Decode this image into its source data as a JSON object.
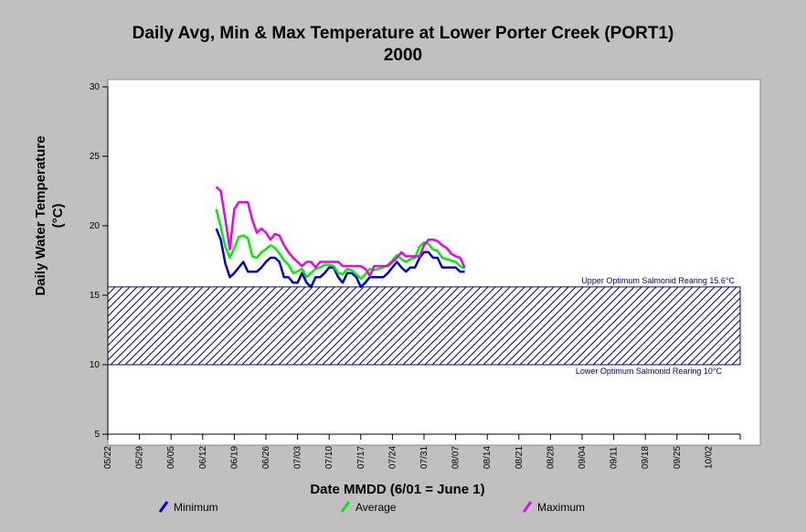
{
  "chart_data": {
    "type": "line",
    "title": "Daily Avg, Min & Max Temperature at Lower Porter Creek (PORT1)",
    "subtitle": "2000",
    "xlabel": "Date MMDD (6/01 = June 1)",
    "ylabel_line1": "Daily Water Temperature",
    "ylabel_line2": "(°C)",
    "ylim": [
      5,
      30
    ],
    "yticks": [
      5,
      10,
      15,
      20,
      25,
      30
    ],
    "xlim": [
      "2000-05-22",
      "2000-10-09"
    ],
    "xticks": [
      "05/22",
      "05/29",
      "06/05",
      "06/12",
      "06/19",
      "06/26",
      "07/03",
      "07/10",
      "07/17",
      "07/24",
      "07/31",
      "08/07",
      "08/14",
      "08/21",
      "08/28",
      "09/04",
      "09/11",
      "09/18",
      "09/25",
      "10/02"
    ],
    "grid": false,
    "legend_position": "bottom",
    "x": [
      "2000-06-15",
      "2000-06-16",
      "2000-06-17",
      "2000-06-18",
      "2000-06-19",
      "2000-06-20",
      "2000-06-21",
      "2000-06-22",
      "2000-06-23",
      "2000-06-24",
      "2000-06-25",
      "2000-06-26",
      "2000-06-27",
      "2000-06-28",
      "2000-06-29",
      "2000-06-30",
      "2000-07-01",
      "2000-07-02",
      "2000-07-03",
      "2000-07-04",
      "2000-07-05",
      "2000-07-06",
      "2000-07-07",
      "2000-07-08",
      "2000-07-09",
      "2000-07-10",
      "2000-07-11",
      "2000-07-12",
      "2000-07-13",
      "2000-07-14",
      "2000-07-15",
      "2000-07-16",
      "2000-07-17",
      "2000-07-18",
      "2000-07-19",
      "2000-07-20",
      "2000-07-21",
      "2000-07-22",
      "2000-07-23",
      "2000-07-24",
      "2000-07-25",
      "2000-07-26",
      "2000-07-27",
      "2000-07-28",
      "2000-07-29",
      "2000-07-30",
      "2000-07-31",
      "2000-08-01",
      "2000-08-02",
      "2000-08-03",
      "2000-08-04",
      "2000-08-05",
      "2000-08-06",
      "2000-08-07",
      "2000-08-08",
      "2000-08-09"
    ],
    "series": [
      {
        "name": "Minimum",
        "color": "#0000cc",
        "values": [
          19.8,
          19.0,
          17.3,
          16.3,
          16.6,
          17.0,
          17.4,
          16.7,
          16.7,
          16.7,
          17.0,
          17.4,
          17.7,
          17.7,
          17.4,
          16.3,
          16.3,
          15.9,
          15.9,
          16.6,
          15.9,
          15.6,
          16.3,
          16.3,
          16.6,
          17.0,
          17.0,
          16.3,
          15.9,
          16.6,
          16.6,
          16.3,
          15.6,
          15.9,
          16.3,
          16.3,
          16.3,
          16.3,
          16.6,
          17.0,
          17.4,
          17.0,
          16.7,
          17.0,
          17.0,
          17.7,
          18.1,
          18.1,
          17.7,
          17.7,
          17.0,
          17.0,
          17.0,
          17.0,
          16.7,
          16.7
        ]
      },
      {
        "name": "Average",
        "color": "#00ee00",
        "values": [
          21.2,
          19.9,
          18.5,
          17.7,
          18.4,
          19.2,
          19.3,
          19.1,
          17.8,
          17.7,
          18.1,
          18.3,
          18.6,
          18.4,
          18.0,
          17.5,
          17.2,
          16.6,
          16.7,
          16.9,
          16.3,
          16.6,
          16.9,
          17.0,
          17.2,
          17.2,
          17.1,
          16.6,
          16.5,
          16.9,
          16.8,
          16.5,
          16.2,
          16.5,
          16.9,
          16.8,
          16.9,
          17.0,
          17.2,
          17.5,
          17.9,
          17.6,
          17.4,
          17.6,
          17.7,
          18.5,
          18.8,
          18.7,
          18.3,
          18.2,
          17.7,
          17.6,
          17.5,
          17.4,
          17.1,
          16.9
        ]
      },
      {
        "name": "Maximum",
        "color": "#ee00ee",
        "values": [
          22.8,
          22.5,
          20.5,
          18.3,
          21.2,
          21.7,
          21.7,
          21.7,
          20.4,
          19.5,
          19.8,
          19.5,
          19.0,
          19.4,
          19.3,
          18.6,
          18.1,
          17.7,
          17.4,
          17.1,
          17.4,
          17.4,
          17.0,
          17.4,
          17.4,
          17.4,
          17.4,
          17.4,
          17.1,
          17.1,
          17.1,
          17.1,
          17.1,
          16.9,
          16.4,
          17.1,
          17.1,
          17.1,
          17.1,
          17.4,
          17.7,
          18.1,
          17.8,
          17.8,
          17.8,
          17.8,
          18.6,
          19.0,
          19.0,
          18.9,
          18.6,
          18.4,
          18.0,
          17.8,
          17.7,
          17.0
        ]
      }
    ],
    "bands": [
      {
        "from": 10,
        "to": 15.6,
        "upper_label": "Upper Optimum Salmonid Rearing 15.6°C",
        "lower_label": "Lower Optimum Salmonid Rearing 10°C",
        "color": "#0000aa"
      }
    ]
  }
}
